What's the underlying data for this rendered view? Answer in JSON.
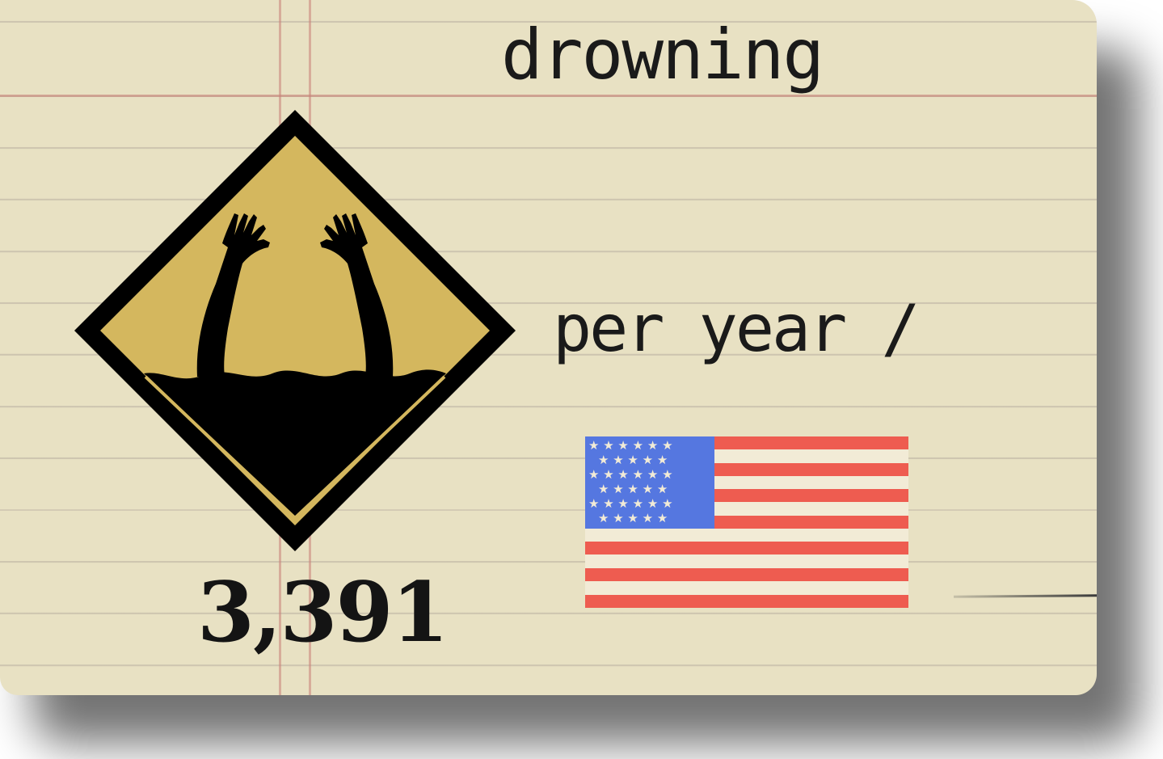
{
  "card": {
    "title": "drowning",
    "per_year_label": "per year /",
    "value": "3,391"
  },
  "icons": {
    "sign": "drowning-warning-sign-icon",
    "flag": "usa-flag-icon"
  },
  "colors": {
    "paper": "#e8e1c3",
    "sign_fill": "#d4b75e",
    "sign_border": "#000000",
    "flag_red": "#ee5c50",
    "flag_blue": "#5577e0",
    "flag_white": "#f2ebd6"
  }
}
